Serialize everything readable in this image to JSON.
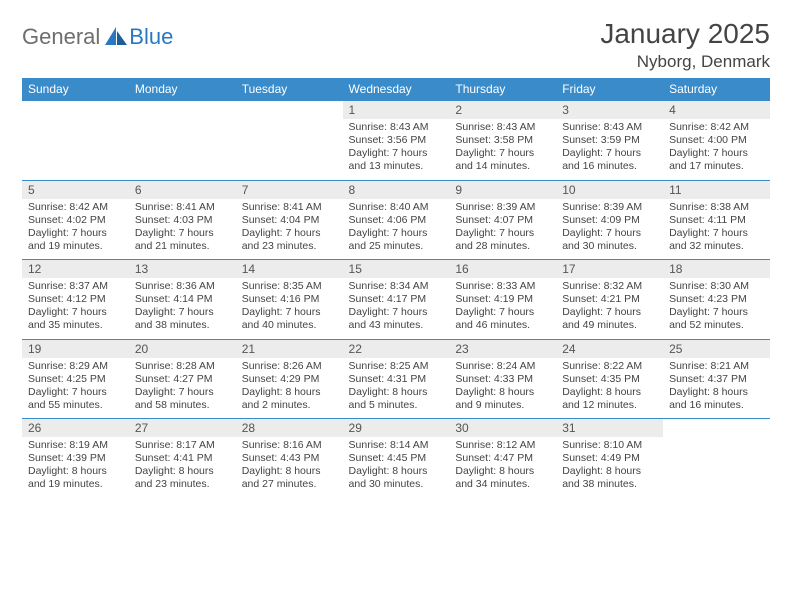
{
  "logo": {
    "general": "General",
    "blue": "Blue"
  },
  "header": {
    "title": "January 2025",
    "location": "Nyborg, Denmark"
  },
  "colors": {
    "header_bg": "#3a8bc9",
    "header_text": "#ffffff",
    "daynum_bg": "#ececec",
    "border": "#3a8bc9",
    "logo_gray": "#6e6e6e",
    "logo_blue": "#2b78c2"
  },
  "dayNames": [
    "Sunday",
    "Monday",
    "Tuesday",
    "Wednesday",
    "Thursday",
    "Friday",
    "Saturday"
  ],
  "weeks": [
    [
      null,
      null,
      null,
      {
        "n": "1",
        "sr": "8:43 AM",
        "ss": "3:56 PM",
        "dl": "7 hours and 13 minutes."
      },
      {
        "n": "2",
        "sr": "8:43 AM",
        "ss": "3:58 PM",
        "dl": "7 hours and 14 minutes."
      },
      {
        "n": "3",
        "sr": "8:43 AM",
        "ss": "3:59 PM",
        "dl": "7 hours and 16 minutes."
      },
      {
        "n": "4",
        "sr": "8:42 AM",
        "ss": "4:00 PM",
        "dl": "7 hours and 17 minutes."
      }
    ],
    [
      {
        "n": "5",
        "sr": "8:42 AM",
        "ss": "4:02 PM",
        "dl": "7 hours and 19 minutes."
      },
      {
        "n": "6",
        "sr": "8:41 AM",
        "ss": "4:03 PM",
        "dl": "7 hours and 21 minutes."
      },
      {
        "n": "7",
        "sr": "8:41 AM",
        "ss": "4:04 PM",
        "dl": "7 hours and 23 minutes."
      },
      {
        "n": "8",
        "sr": "8:40 AM",
        "ss": "4:06 PM",
        "dl": "7 hours and 25 minutes."
      },
      {
        "n": "9",
        "sr": "8:39 AM",
        "ss": "4:07 PM",
        "dl": "7 hours and 28 minutes."
      },
      {
        "n": "10",
        "sr": "8:39 AM",
        "ss": "4:09 PM",
        "dl": "7 hours and 30 minutes."
      },
      {
        "n": "11",
        "sr": "8:38 AM",
        "ss": "4:11 PM",
        "dl": "7 hours and 32 minutes."
      }
    ],
    [
      {
        "n": "12",
        "sr": "8:37 AM",
        "ss": "4:12 PM",
        "dl": "7 hours and 35 minutes."
      },
      {
        "n": "13",
        "sr": "8:36 AM",
        "ss": "4:14 PM",
        "dl": "7 hours and 38 minutes."
      },
      {
        "n": "14",
        "sr": "8:35 AM",
        "ss": "4:16 PM",
        "dl": "7 hours and 40 minutes."
      },
      {
        "n": "15",
        "sr": "8:34 AM",
        "ss": "4:17 PM",
        "dl": "7 hours and 43 minutes."
      },
      {
        "n": "16",
        "sr": "8:33 AM",
        "ss": "4:19 PM",
        "dl": "7 hours and 46 minutes."
      },
      {
        "n": "17",
        "sr": "8:32 AM",
        "ss": "4:21 PM",
        "dl": "7 hours and 49 minutes."
      },
      {
        "n": "18",
        "sr": "8:30 AM",
        "ss": "4:23 PM",
        "dl": "7 hours and 52 minutes."
      }
    ],
    [
      {
        "n": "19",
        "sr": "8:29 AM",
        "ss": "4:25 PM",
        "dl": "7 hours and 55 minutes."
      },
      {
        "n": "20",
        "sr": "8:28 AM",
        "ss": "4:27 PM",
        "dl": "7 hours and 58 minutes."
      },
      {
        "n": "21",
        "sr": "8:26 AM",
        "ss": "4:29 PM",
        "dl": "8 hours and 2 minutes."
      },
      {
        "n": "22",
        "sr": "8:25 AM",
        "ss": "4:31 PM",
        "dl": "8 hours and 5 minutes."
      },
      {
        "n": "23",
        "sr": "8:24 AM",
        "ss": "4:33 PM",
        "dl": "8 hours and 9 minutes."
      },
      {
        "n": "24",
        "sr": "8:22 AM",
        "ss": "4:35 PM",
        "dl": "8 hours and 12 minutes."
      },
      {
        "n": "25",
        "sr": "8:21 AM",
        "ss": "4:37 PM",
        "dl": "8 hours and 16 minutes."
      }
    ],
    [
      {
        "n": "26",
        "sr": "8:19 AM",
        "ss": "4:39 PM",
        "dl": "8 hours and 19 minutes."
      },
      {
        "n": "27",
        "sr": "8:17 AM",
        "ss": "4:41 PM",
        "dl": "8 hours and 23 minutes."
      },
      {
        "n": "28",
        "sr": "8:16 AM",
        "ss": "4:43 PM",
        "dl": "8 hours and 27 minutes."
      },
      {
        "n": "29",
        "sr": "8:14 AM",
        "ss": "4:45 PM",
        "dl": "8 hours and 30 minutes."
      },
      {
        "n": "30",
        "sr": "8:12 AM",
        "ss": "4:47 PM",
        "dl": "8 hours and 34 minutes."
      },
      {
        "n": "31",
        "sr": "8:10 AM",
        "ss": "4:49 PM",
        "dl": "8 hours and 38 minutes."
      },
      null
    ]
  ],
  "labels": {
    "sunrise": "Sunrise:",
    "sunset": "Sunset:",
    "daylight": "Daylight:"
  }
}
